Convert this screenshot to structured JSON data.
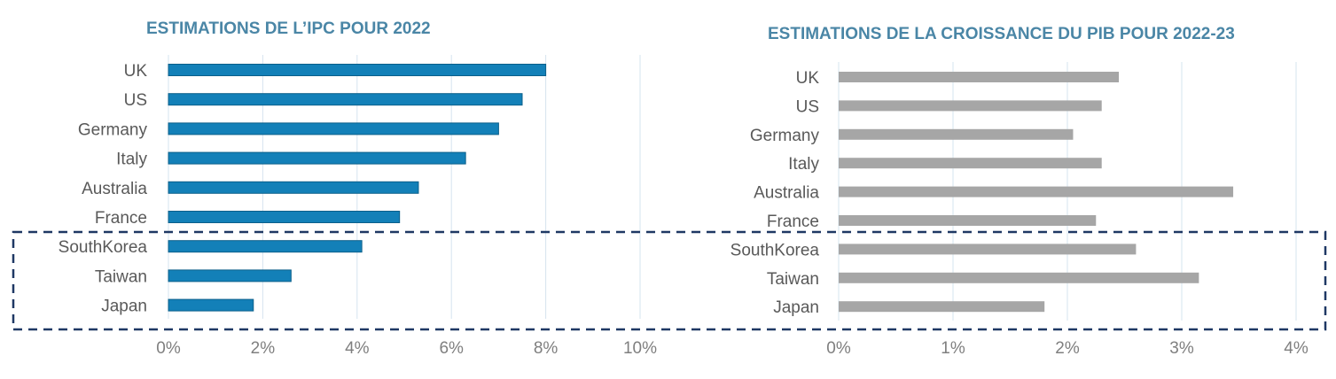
{
  "colors": {
    "left_bar": "#1380b8",
    "left_bar_edge": "#0b5f8a",
    "right_bar": "#a6a6a6",
    "grid": "#d6e4ef",
    "highlight_box": "#1f3864",
    "title": "#4a86a6"
  },
  "chart_data": [
    {
      "type": "bar",
      "orientation": "horizontal",
      "title": "ESTIMATIONS DE L’IPC POUR 2022",
      "categories": [
        "UK",
        "US",
        "Germany",
        "Italy",
        "Australia",
        "France",
        "SouthKorea",
        "Taiwan",
        "Japan"
      ],
      "values": [
        8.0,
        7.5,
        7.0,
        6.3,
        5.3,
        4.9,
        4.1,
        2.6,
        1.8
      ],
      "xlim": [
        0,
        10
      ],
      "xticks": [
        "0%",
        "2%",
        "4%",
        "6%",
        "8%",
        "10%"
      ],
      "grid": true
    },
    {
      "type": "bar",
      "orientation": "horizontal",
      "title": "ESTIMATIONS DE LA CROISSANCE DU PIB POUR 2022-23",
      "categories": [
        "UK",
        "US",
        "Germany",
        "Italy",
        "Australia",
        "France",
        "SouthKorea",
        "Taiwan",
        "Japan"
      ],
      "values": [
        2.45,
        2.3,
        2.05,
        2.3,
        3.45,
        2.25,
        2.6,
        3.15,
        1.8
      ],
      "xlim": [
        0,
        4
      ],
      "xticks": [
        "0%",
        "1%",
        "2%",
        "3%",
        "4%"
      ],
      "grid": true
    }
  ],
  "highlight": {
    "description_categories": [
      "SouthKorea",
      "Taiwan",
      "Japan"
    ]
  }
}
